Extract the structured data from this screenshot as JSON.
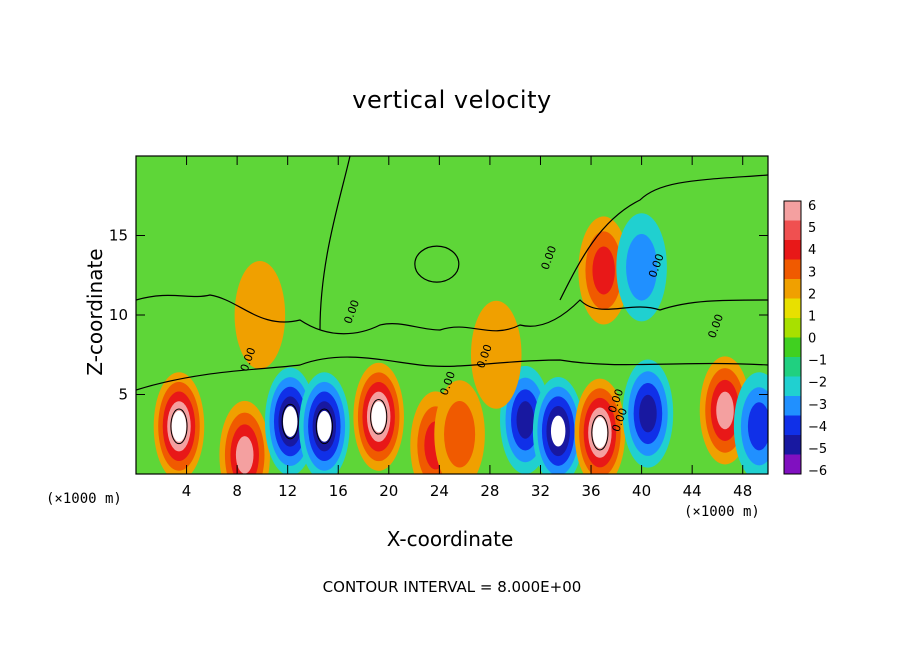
{
  "chart_data": {
    "type": "heatmap",
    "title": "vertical velocity",
    "xlabel": "X-coordinate",
    "ylabel": "Z-coordinate",
    "x_unit_label_left": "(×1000 m)",
    "x_unit_label_right": "(×1000 m)",
    "footer": "CONTOUR INTERVAL = 8.000E+00",
    "xlim": [
      0,
      50
    ],
    "ylim": [
      0,
      20
    ],
    "x_ticks": [
      4,
      8,
      12,
      16,
      20,
      24,
      28,
      32,
      36,
      40,
      44,
      48
    ],
    "y_ticks": [
      5,
      10,
      15
    ],
    "contour_labels": [
      "0.00",
      "0.00",
      "0.00",
      "0.00",
      "0.00",
      "0.00",
      "0.00",
      "0.00",
      "0.00"
    ],
    "colorbar": {
      "ticks": [
        6,
        5,
        4,
        3,
        2,
        1,
        0,
        -1,
        -2,
        -3,
        -4,
        -5,
        -6
      ],
      "tick_labels": [
        "6",
        "5",
        "4",
        "3",
        "2",
        "1",
        "0",
        "−1",
        "−2",
        "−3",
        "−4",
        "−5",
        "−6"
      ],
      "colors": [
        "#f4a0a0",
        "#f05050",
        "#e81818",
        "#f05a00",
        "#f0a000",
        "#e8e000",
        "#a8e000",
        "#40d020",
        "#20d080",
        "#20d0d0",
        "#2090ff",
        "#1030e8",
        "#1818a0",
        "#8010c0"
      ]
    },
    "features": [
      {
        "x": 3.4,
        "z": 3.0,
        "w": 6.0
      },
      {
        "x": 8.6,
        "z": 1.2,
        "w": 4.5
      },
      {
        "x": 12.2,
        "z": 3.3,
        "w": -5.5
      },
      {
        "x": 14.9,
        "z": 3.0,
        "w": -5.5
      },
      {
        "x": 19.2,
        "z": 3.6,
        "w": 6.0
      },
      {
        "x": 23.7,
        "z": 1.8,
        "w": 3.0
      },
      {
        "x": 25.6,
        "z": 2.5,
        "w": 2.5
      },
      {
        "x": 30.8,
        "z": 3.4,
        "w": -4.5
      },
      {
        "x": 33.4,
        "z": 2.7,
        "w": -5.0
      },
      {
        "x": 36.7,
        "z": 2.6,
        "w": 6.0
      },
      {
        "x": 37.0,
        "z": 12.8,
        "w": 3.0
      },
      {
        "x": 40.5,
        "z": 3.8,
        "w": -4.0
      },
      {
        "x": 46.6,
        "z": 4.0,
        "w": 4.0
      },
      {
        "x": 49.3,
        "z": 3.0,
        "w": -3.0
      },
      {
        "x": 9.8,
        "z": 10.0,
        "w": 1.2
      },
      {
        "x": 28.5,
        "z": 7.5,
        "w": 1.5
      },
      {
        "x": 40.0,
        "z": 13.0,
        "w": -2.0
      }
    ]
  }
}
